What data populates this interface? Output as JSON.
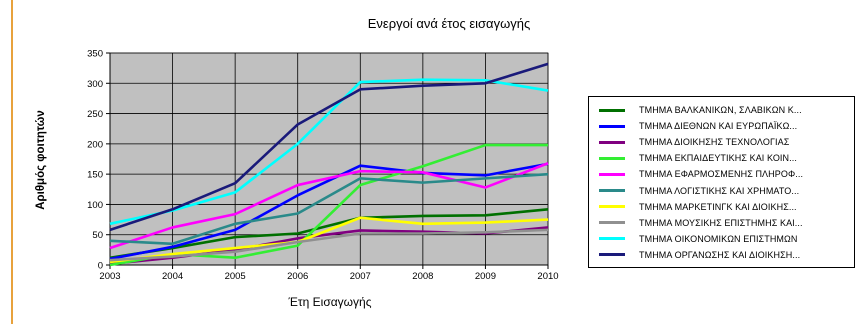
{
  "chart_data": {
    "type": "line",
    "title": "Ενεργοί ανά έτος εισαγωγής",
    "xlabel": "Έτη Εισαγωγής",
    "ylabel": "Αριθμός φοιτητών",
    "x": [
      2003,
      2004,
      2005,
      2006,
      2007,
      2008,
      2009,
      2010
    ],
    "ylim": [
      0,
      350
    ],
    "yticks": [
      0,
      50,
      100,
      150,
      200,
      250,
      300,
      350
    ],
    "grid": true,
    "legend_position": "right",
    "plot_background": "#c0c0c0",
    "series": [
      {
        "name": "ΤΜΗΜΑ ΒΑΛΚΑΝΙΚΩΝ, ΣΛΑΒΙΚΩΝ Κ...",
        "color": "#007000",
        "values": [
          12,
          28,
          46,
          52,
          78,
          81,
          82,
          92
        ]
      },
      {
        "name": "ΤΜΗΜΑ ΔΙΕΘΝΩΝ ΚΑΙ ΕΥΡΩΠΑΪΚΩ...",
        "color": "#0000ff",
        "values": [
          10,
          30,
          58,
          115,
          164,
          152,
          148,
          167
        ]
      },
      {
        "name": "ΤΜΗΜΑ ΔΙΟΙΚΗΣΗΣ ΤΕΧΝΟΛΟΓΙΑΣ",
        "color": "#800080",
        "values": [
          2,
          12,
          25,
          44,
          57,
          55,
          52,
          62
        ]
      },
      {
        "name": "ΤΜΗΜΑ ΕΚΠΑΙΔΕΥΤΙΚΗΣ ΚΑΙ ΚΟΙΝ...",
        "color": "#33ee33",
        "values": [
          0,
          18,
          12,
          32,
          132,
          163,
          198,
          198
        ]
      },
      {
        "name": "ΤΜΗΜΑ ΕΦΑΡΜΟΣΜΕΝΗΣ ΠΛΗΡΟΦ...",
        "color": "#ff00ff",
        "values": [
          28,
          62,
          84,
          132,
          155,
          153,
          128,
          168
        ]
      },
      {
        "name": "ΤΜΗΜΑ ΛΟΓΙΣΤΙΚΗΣ ΚΑΙ ΧΡΗΜΑΤΟ...",
        "color": "#2a8a8a",
        "values": [
          40,
          35,
          68,
          85,
          143,
          136,
          143,
          150
        ]
      },
      {
        "name": "ΤΜΗΜΑ ΜΑΡΚΕΤΙΝΓΚ ΚΑΙ ΔΙΟΙΚΗΣ...",
        "color": "#ffff00",
        "values": [
          5,
          18,
          28,
          38,
          78,
          68,
          70,
          75
        ]
      },
      {
        "name": "ΤΜΗΜΑ ΜΟΥΣΙΚΗΣ ΕΠΙΣΤΗΜΗΣ ΚΑΙ...",
        "color": "#909090",
        "values": [
          8,
          14,
          22,
          38,
          52,
          52,
          54,
          58
        ]
      },
      {
        "name": "ΤΜΗΜΑ ΟΙΚΟΝΟΜΙΚΩΝ ΕΠΙΣΤΗΜΩΝ",
        "color": "#00ffff",
        "values": [
          68,
          90,
          120,
          200,
          302,
          306,
          305,
          288
        ]
      },
      {
        "name": "ΤΜΗΜΑ ΟΡΓΑΝΩΣΗΣ ΚΑΙ ΔΙΟΙΚΗΣΗ...",
        "color": "#1a1a7a",
        "values": [
          58,
          92,
          135,
          232,
          290,
          296,
          300,
          332
        ]
      }
    ]
  }
}
